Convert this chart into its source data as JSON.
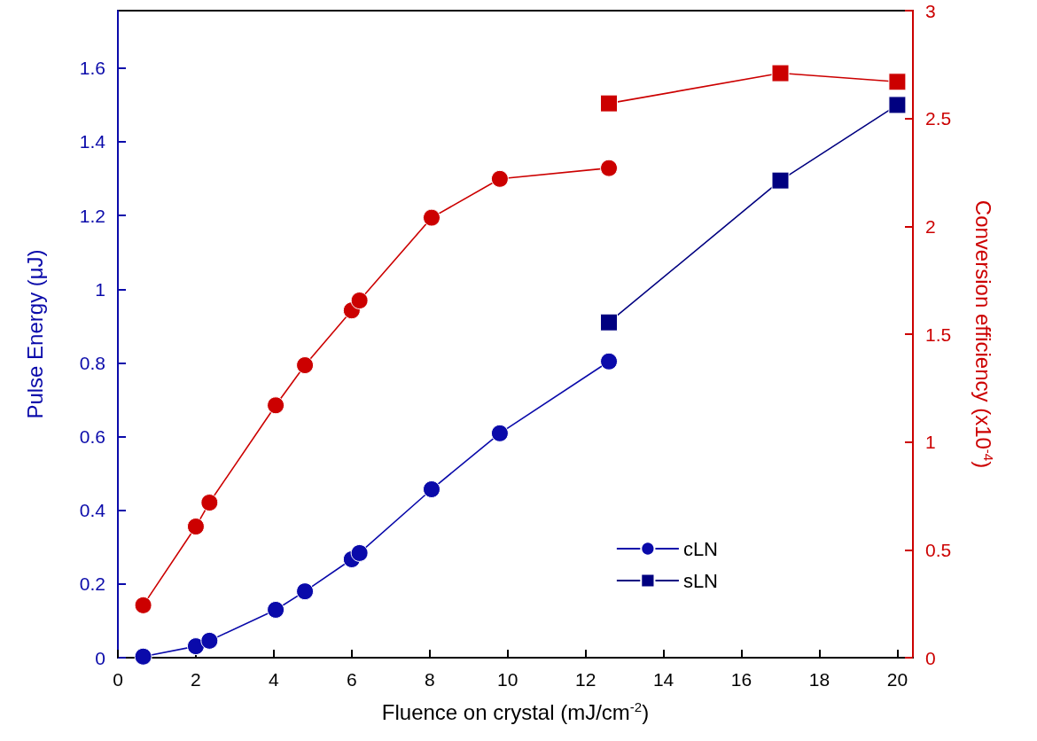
{
  "chart_data": {
    "type": "line",
    "xlabel": "Fluence on crystal (mJ/cm$^{-2}$)",
    "ylabel": "Pulse Energy (μJ)",
    "y2label": "Conversion efficiency (x10$^{-4}$)",
    "xlim": [
      0,
      20.4
    ],
    "xticks": [
      0,
      2,
      4,
      6,
      8,
      10,
      12,
      14,
      16,
      18,
      20
    ],
    "ylim": [
      0,
      1.756
    ],
    "yticks": [
      0,
      0.2,
      0.4,
      0.6,
      0.8,
      1,
      1.2,
      1.4,
      1.6
    ],
    "y2lim": [
      0,
      3
    ],
    "y2ticks": [
      0,
      0.5,
      1,
      1.5,
      2,
      2.5,
      3
    ],
    "grid": false,
    "legend": "bottom right",
    "series": [
      {
        "name": "cLN",
        "color": "#0a0aaa",
        "marker": "circle",
        "x": [
          0.65,
          2,
          2.35,
          4.05,
          4.8,
          6,
          6.2,
          8.05,
          9.8,
          12.6
        ],
        "values": [
          0.003,
          0.031,
          0.046,
          0.13,
          0.18,
          0.267,
          0.284,
          0.457,
          0.609,
          0.804
        ]
      },
      {
        "name": "sLN",
        "color": "#000080",
        "marker": "square",
        "x": [
          12.6,
          17,
          20
        ],
        "values": [
          0.91,
          1.295,
          1.5
        ]
      },
      {
        "color": "#cc0000",
        "marker": "circle",
        "axis": "y2",
        "x": [
          0.65,
          2,
          2.35,
          4.05,
          4.8,
          6,
          6.2,
          8.05,
          9.8,
          12.6
        ],
        "values": [
          0.243,
          0.608,
          0.719,
          1.17,
          1.356,
          1.61,
          1.656,
          2.04,
          2.22,
          2.27
        ]
      },
      {
        "color": "#cc0000",
        "marker": "square",
        "axis": "y2",
        "x": [
          12.6,
          17,
          20
        ],
        "values": [
          2.57,
          2.71,
          2.67
        ]
      }
    ]
  }
}
